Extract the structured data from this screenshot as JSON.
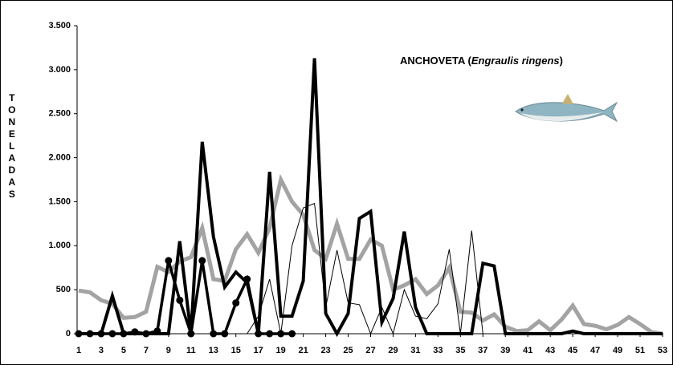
{
  "chart_data": {
    "type": "line",
    "title": [
      "ANCHOVETA  (",
      "Engraulis ringens",
      ")"
    ],
    "ylabel": "TONELADAS",
    "x": [
      1,
      2,
      3,
      4,
      5,
      6,
      7,
      8,
      9,
      10,
      11,
      12,
      13,
      14,
      15,
      16,
      17,
      18,
      19,
      20,
      21,
      22,
      23,
      24,
      25,
      26,
      27,
      28,
      29,
      30,
      31,
      32,
      33,
      34,
      35,
      36,
      37,
      38,
      39,
      40,
      41,
      42,
      43,
      44,
      45,
      46,
      47,
      48,
      49,
      50,
      51,
      52,
      53
    ],
    "xlim": [
      1,
      53
    ],
    "xticks": [
      1,
      3,
      5,
      7,
      9,
      11,
      13,
      15,
      17,
      19,
      21,
      23,
      25,
      27,
      29,
      31,
      33,
      35,
      37,
      39,
      41,
      43,
      45,
      47,
      49,
      51,
      53
    ],
    "ylim": [
      0,
      3500
    ],
    "yticks": [
      0,
      500,
      {
        "value": 1000,
        "label": "1.000"
      },
      {
        "value": 1500,
        "label": "1.500"
      },
      {
        "value": 2000,
        "label": "2.000"
      },
      {
        "value": 2500,
        "label": "2.500"
      },
      {
        "value": 3000,
        "label": "3.000"
      },
      {
        "value": 3500,
        "label": "3.500"
      }
    ],
    "grid": false,
    "series": [
      {
        "color": "#a3a3a3",
        "values": [
          490,
          470,
          380,
          340,
          180,
          190,
          250,
          760,
          700,
          820,
          870,
          1200,
          620,
          600,
          960,
          1130,
          920,
          1200,
          1750,
          1500,
          1350,
          950,
          850,
          1250,
          850,
          850,
          1070,
          1000,
          500,
          550,
          620,
          450,
          550,
          750,
          250,
          240,
          150,
          220,
          80,
          30,
          40,
          140,
          40,
          160,
          320,
          110,
          90,
          50,
          100,
          190,
          110,
          20,
          0
        ]
      },
      {
        "color": "#000000",
        "values": [
          0,
          0,
          0,
          0,
          0,
          0,
          0,
          0,
          0,
          0,
          0,
          0,
          0,
          0,
          0,
          0,
          200,
          620,
          0,
          1000,
          1430,
          1480,
          300,
          950,
          350,
          330,
          0,
          300,
          0,
          500,
          200,
          170,
          340,
          960,
          0,
          1170,
          0,
          null,
          null,
          null,
          null,
          null,
          null,
          null,
          null,
          null,
          null,
          null,
          null,
          null,
          null,
          null,
          null
        ]
      },
      {
        "color": "#000000",
        "values": [
          0,
          0,
          0,
          430,
          0,
          0,
          0,
          0,
          0,
          1050,
          0,
          2180,
          1100,
          530,
          700,
          580,
          0,
          1840,
          200,
          200,
          600,
          3130,
          230,
          0,
          230,
          1310,
          1390,
          130,
          400,
          1160,
          300,
          0,
          0,
          0,
          0,
          0,
          800,
          770,
          0,
          0,
          0,
          0,
          0,
          0,
          30,
          0,
          0,
          0,
          0,
          0,
          0,
          0,
          0
        ]
      },
      {
        "color": "#000000",
        "marker": "circle",
        "values": [
          0,
          0,
          0,
          0,
          0,
          20,
          0,
          30,
          830,
          380,
          0,
          830,
          0,
          0,
          350,
          620,
          0,
          0,
          0,
          0,
          null,
          null,
          null,
          null,
          null,
          null,
          null,
          null,
          null,
          null,
          null,
          null,
          null,
          null,
          null,
          null,
          null,
          null,
          null,
          null,
          null,
          null,
          null,
          null,
          null,
          null,
          null,
          null,
          null,
          null,
          null,
          null,
          null
        ]
      }
    ]
  }
}
